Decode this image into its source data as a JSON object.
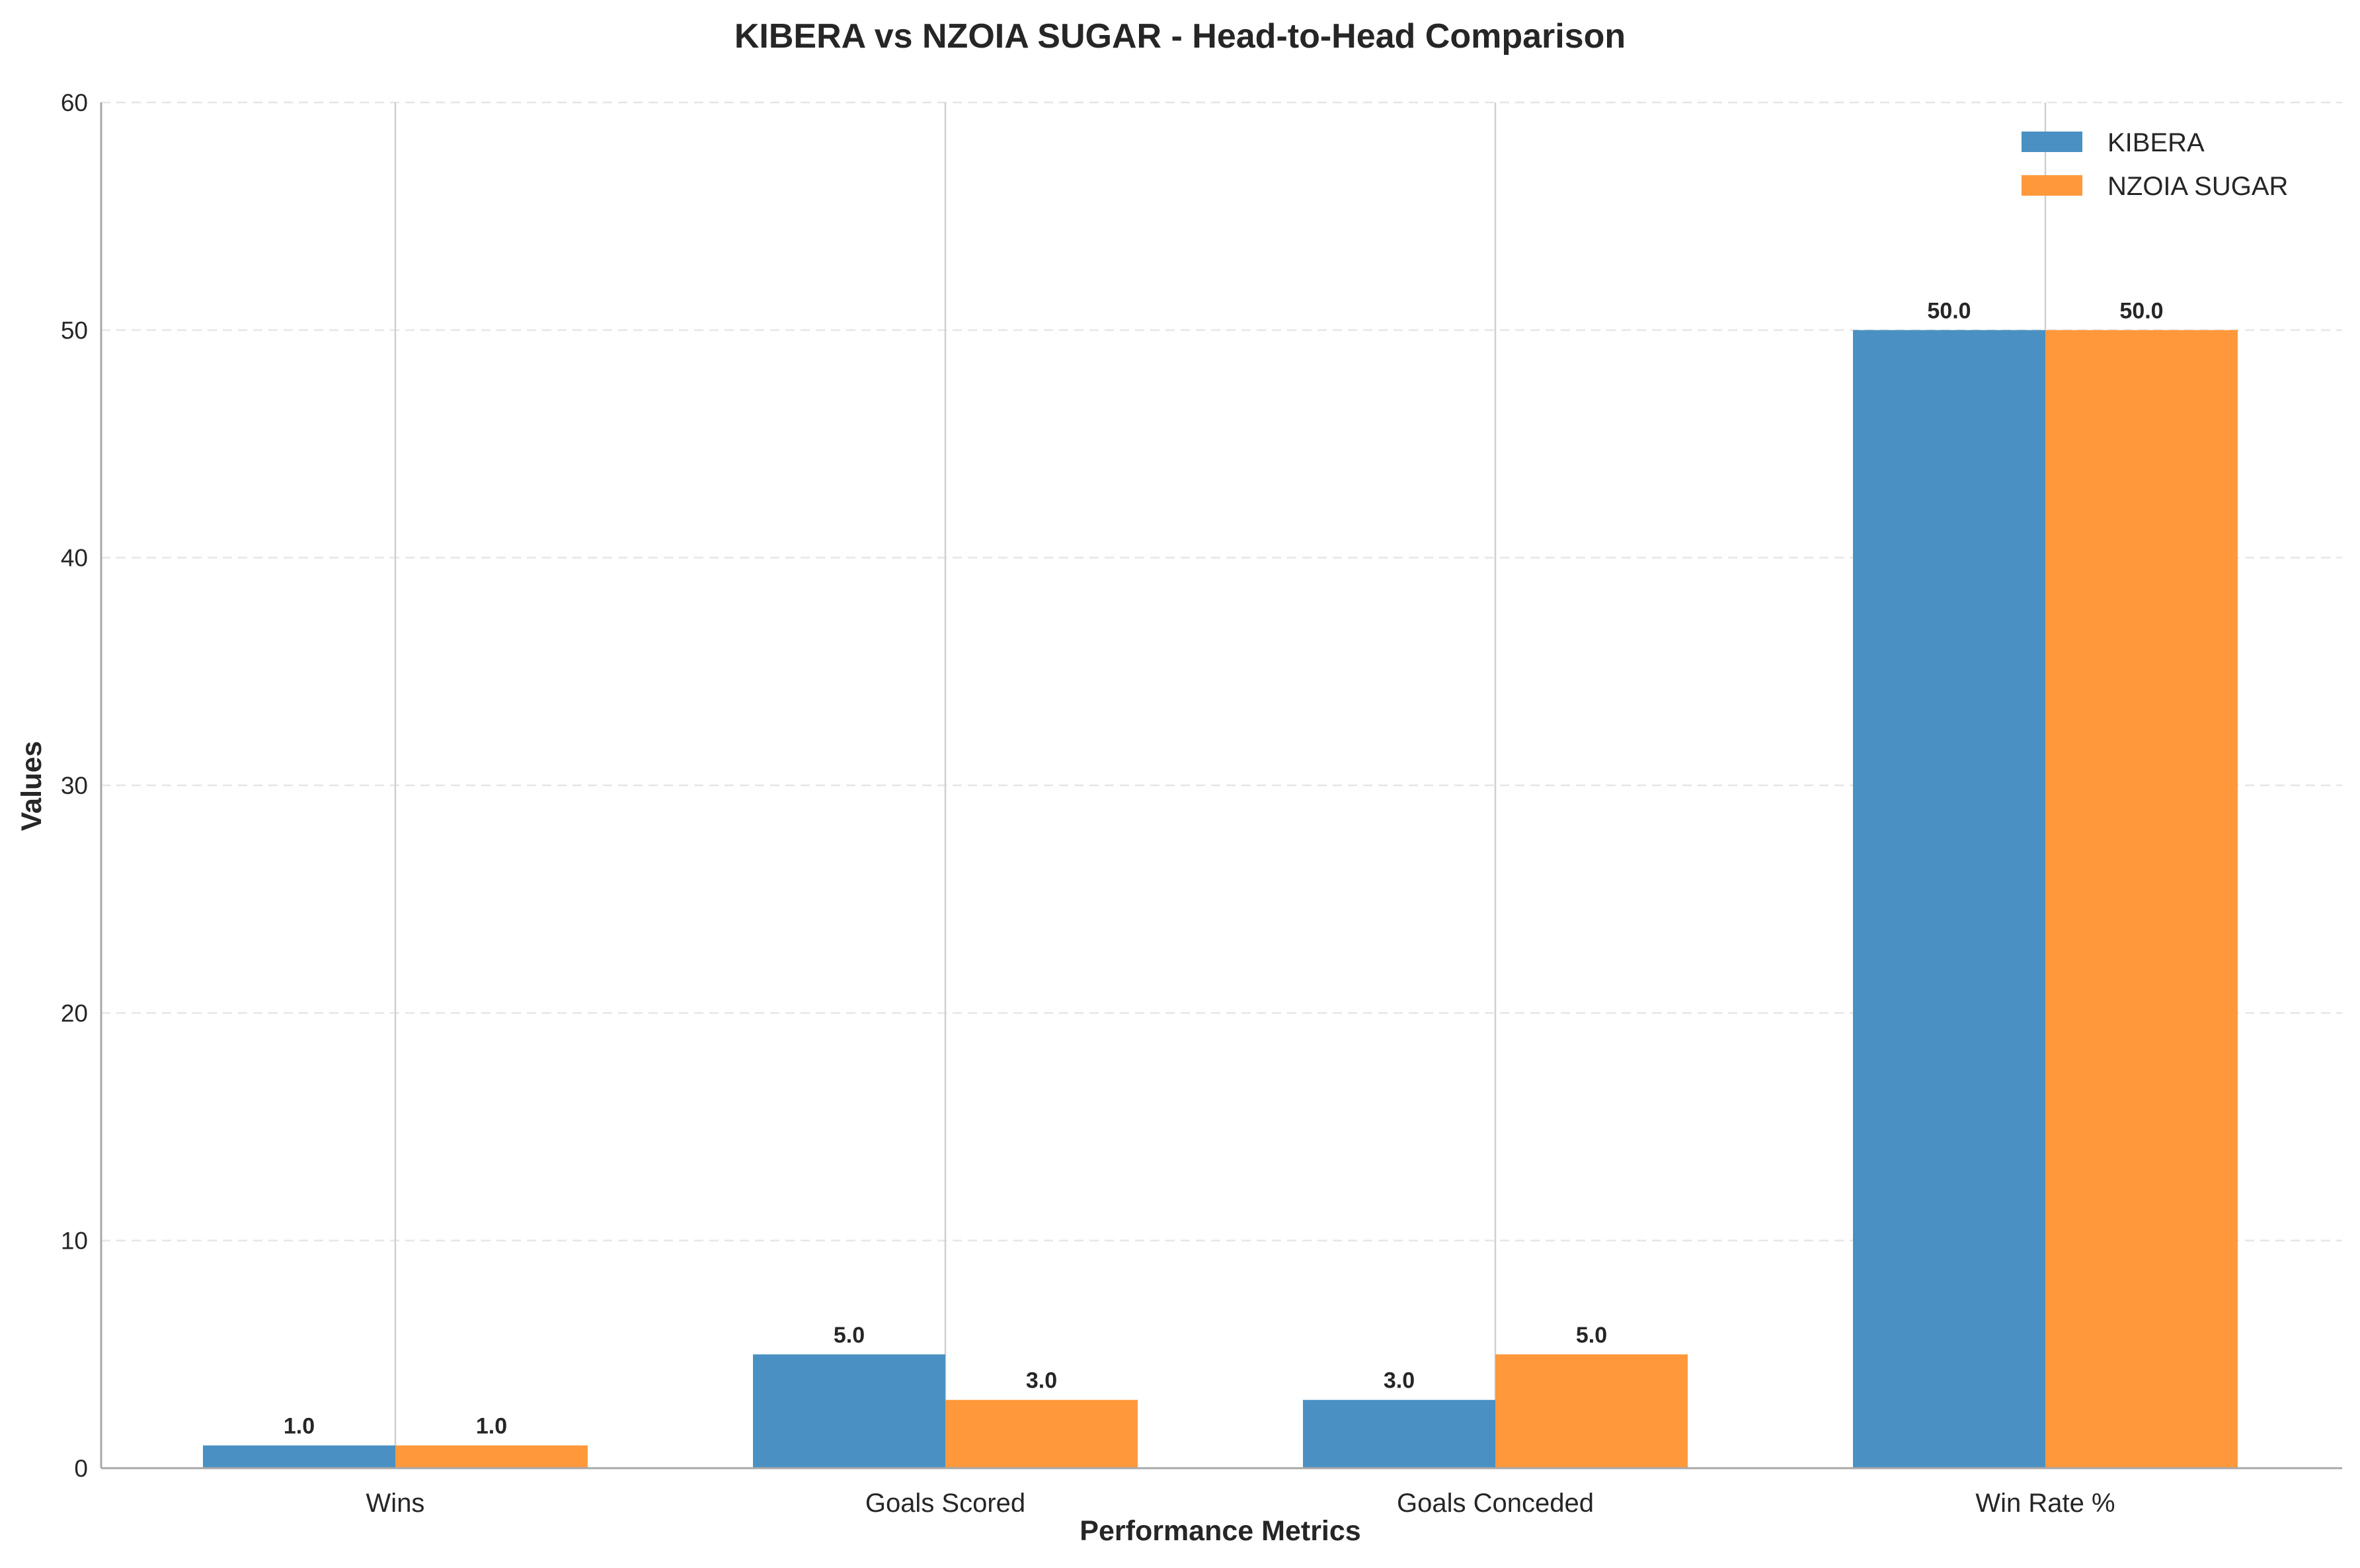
{
  "chart_data": {
    "type": "bar",
    "title": "KIBERA vs NZOIA SUGAR - Head-to-Head Comparison",
    "xlabel": "Performance Metrics",
    "ylabel": "Values",
    "categories": [
      "Wins",
      "Goals Scored",
      "Goals Conceded",
      "Win Rate %"
    ],
    "series": [
      {
        "name": "KIBERA",
        "values": [
          1.0,
          5.0,
          3.0,
          50.0
        ],
        "value_labels": [
          "1.0",
          "5.0",
          "3.0",
          "50.0"
        ],
        "color": "#4a90c2"
      },
      {
        "name": "NZOIA SUGAR",
        "values": [
          1.0,
          3.0,
          5.0,
          50.0
        ],
        "value_labels": [
          "1.0",
          "3.0",
          "5.0",
          "50.0"
        ],
        "color": "#ff983b"
      }
    ],
    "ylim": [
      0,
      60
    ],
    "yticks": [
      0,
      10,
      20,
      30,
      40,
      50,
      60
    ],
    "ytick_labels": [
      "0",
      "10",
      "20",
      "30",
      "40",
      "50",
      "60"
    ],
    "grid": {
      "y": "dashed light grey",
      "x": "solid grey lines at category centers"
    },
    "legend": {
      "placement": "top-right",
      "entries": [
        "KIBERA",
        "NZOIA SUGAR"
      ]
    }
  }
}
